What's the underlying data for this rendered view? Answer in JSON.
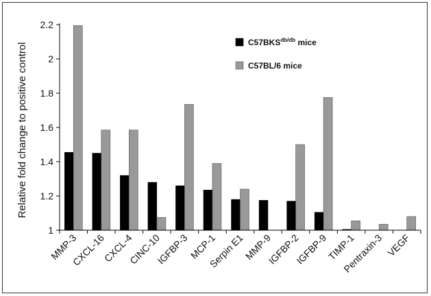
{
  "chart_data": {
    "type": "bar",
    "categories": [
      "MMP-3",
      "CXCL-16",
      "CXCL-4",
      "CINC-10",
      "IGFBP-3",
      "MCP-1",
      "Serpin E1",
      "MMP-9",
      "IGFBP-2",
      "IGFBP-9",
      "TIMP-1",
      "Pentraxin-3",
      "VEGF"
    ],
    "series": [
      {
        "name": "C57BKS db/db mice",
        "label_main": "C57BKS",
        "label_sup": "db/db",
        "label_tail": " mice",
        "color": "#000000",
        "values": [
          1.455,
          1.45,
          1.32,
          1.28,
          1.26,
          1.235,
          1.18,
          1.175,
          1.17,
          1.105,
          1.005,
          1.0,
          1.0
        ]
      },
      {
        "name": "C57BL/6 mice",
        "color": "#999999",
        "values": [
          2.195,
          1.585,
          1.585,
          1.075,
          1.735,
          1.39,
          1.24,
          1.0,
          1.5,
          1.775,
          1.055,
          1.035,
          1.08
        ]
      }
    ],
    "ylabel": "Relative fold change to positive control",
    "xlabel": "",
    "ylim": [
      1,
      2.2
    ],
    "yticks": [
      "1",
      "1.2",
      "1.4",
      "1.6",
      "1.8",
      "2",
      "2.2"
    ],
    "legend": "top-right",
    "grid": false
  }
}
